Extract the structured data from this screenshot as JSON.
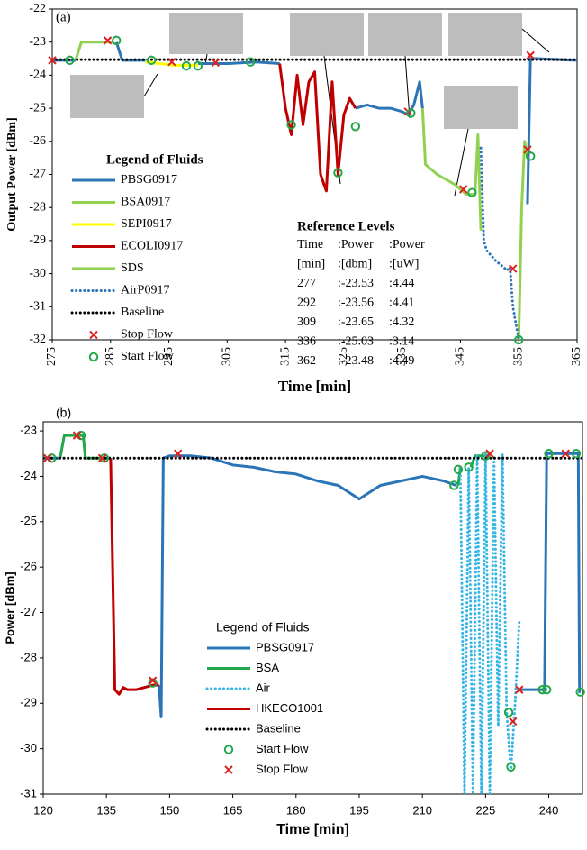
{
  "chart_data": [
    {
      "type": "line",
      "label": "(a)",
      "xlabel": "Time [min]",
      "ylabel": "Output Power [dBm]",
      "xlim": [
        275,
        365
      ],
      "ylim": [
        -22,
        -32
      ],
      "xticks": [
        275,
        285,
        295,
        305,
        315,
        325,
        335,
        345,
        355,
        365
      ],
      "yticks": [
        -22,
        -23,
        -24,
        -25,
        -26,
        -27,
        -28,
        -29,
        -30,
        -31,
        -32
      ],
      "legend_title": "Legend of Fluids",
      "series": [
        {
          "name": "PBSG0917",
          "color": "#2e75b6",
          "style": "solid",
          "x": [
            275,
            279,
            null,
            286,
            287,
            291,
            null,
            300,
            305,
            310,
            314,
            null,
            327,
            329,
            331,
            333,
            335,
            336,
            337,
            338,
            338.5,
            null,
            356.5,
            357,
            358,
            365
          ],
          "values": [
            -23.55,
            -23.55,
            null,
            -23.0,
            -23.55,
            -23.55,
            null,
            -23.65,
            -23.65,
            -23.6,
            -23.65,
            null,
            -25.0,
            -24.9,
            -25.0,
            -25.0,
            -25.1,
            -25.2,
            -24.9,
            -24.2,
            -25.0,
            null,
            -27.9,
            -23.5,
            -23.5,
            -23.55
          ]
        },
        {
          "name": "BSA0917",
          "color": "#92d050",
          "style": "solid",
          "x": [
            279,
            280,
            285.5
          ],
          "values": [
            -23.55,
            -23.0,
            -23.0
          ]
        },
        {
          "name": "SEPI0917",
          "color": "#ffff00",
          "style": "solid",
          "x": [
            291,
            296,
            300
          ],
          "values": [
            -23.6,
            -23.7,
            -23.7
          ]
        },
        {
          "name": "ECOLI0917",
          "color": "#c00000",
          "style": "solid",
          "x": [
            314,
            315,
            316,
            317,
            318,
            319,
            320,
            321,
            322,
            323,
            324,
            325,
            326,
            327
          ],
          "values": [
            -23.65,
            -25.0,
            -25.8,
            -24.0,
            -25.5,
            -24.2,
            -23.9,
            -27.0,
            -27.5,
            -24.2,
            -27.0,
            -25.2,
            -24.7,
            -25.0
          ]
        },
        {
          "name": "SDS",
          "color": "#92d050",
          "style": "solid",
          "x": [
            338.5,
            339,
            341,
            344,
            346,
            347.5,
            348,
            348.5,
            null,
            355,
            355.5,
            356,
            356.5
          ],
          "values": [
            -25.0,
            -26.7,
            -27.0,
            -27.3,
            -27.6,
            -27.6,
            -25.8,
            -28.7,
            null,
            -32.0,
            -28.0,
            -26.0,
            -26.5
          ]
        },
        {
          "name": "AirP0917",
          "color": "#2e75b6",
          "style": "dotted",
          "x": [
            348.5,
            349,
            349.5,
            351,
            353,
            353.5,
            354,
            355
          ],
          "values": [
            -26.2,
            -29.0,
            -29.3,
            -29.6,
            -29.9,
            -29.8,
            -31.0,
            -32.0
          ]
        },
        {
          "name": "Baseline",
          "color": "#000000",
          "style": "dotted",
          "x": [
            275,
            365
          ],
          "values": [
            -23.53,
            -23.53
          ]
        },
        {
          "name": "Stop Flow",
          "color": "#e02020",
          "style": "none",
          "marker": "x",
          "x": [
            275,
            284.5,
            295.5,
            303,
            336,
            345.5,
            354,
            356.5,
            357
          ],
          "values": [
            -23.55,
            -22.95,
            -23.6,
            -23.62,
            -25.1,
            -27.45,
            -29.85,
            -26.25,
            -23.4
          ]
        },
        {
          "name": "Start Flow",
          "color": "#22a84a",
          "style": "none",
          "marker": "o",
          "x": [
            278,
            286,
            292,
            298,
            300,
            309,
            316,
            324,
            327,
            336.5,
            347,
            355,
            357
          ],
          "values": [
            -23.55,
            -22.95,
            -23.55,
            -23.72,
            -23.72,
            -23.6,
            -25.5,
            -26.95,
            -25.55,
            -25.15,
            -27.55,
            -32.0,
            -26.45
          ]
        }
      ],
      "reference_levels": {
        "title": "Reference Levels",
        "rows": [
          [
            "Time",
            ":Power",
            ":Power"
          ],
          [
            "[min]",
            ":[dbm]",
            ":[uW]"
          ],
          [
            "277",
            ":-23.53",
            ":4.44"
          ],
          [
            "292",
            ":-23.56",
            ":4.41"
          ],
          [
            "309",
            ":-23.65",
            ":4.32"
          ],
          [
            "336",
            ":-25.03",
            ":3.14"
          ],
          [
            "362",
            ":-23.48",
            ":4.49"
          ]
        ]
      }
    },
    {
      "type": "line",
      "label": "(b)",
      "xlabel": "Time [min]",
      "ylabel": "Power [dBm]",
      "xlim": [
        120,
        248
      ],
      "ylim": [
        -22.8,
        -31
      ],
      "xticks": [
        120,
        135,
        150,
        165,
        180,
        195,
        210,
        225,
        240
      ],
      "yticks": [
        -23,
        -24,
        -25,
        -26,
        -27,
        -28,
        -29,
        -30,
        -31
      ],
      "legend_title": "Legend of Fluids",
      "series": [
        {
          "name": "PBSG0917",
          "color": "#2a74b8",
          "style": "solid",
          "x": [
            120,
            124,
            null,
            134,
            136,
            null,
            147.5,
            148,
            148.5,
            150,
            155,
            160,
            165,
            170,
            175,
            180,
            185,
            190,
            195,
            200,
            205,
            210,
            215,
            218,
            null,
            233,
            236,
            239,
            239.5,
            240,
            245,
            247,
            247.3,
            247.5
          ],
          "values": [
            -23.6,
            -23.6,
            null,
            -23.6,
            -23.6,
            null,
            -28.6,
            -29.3,
            -23.6,
            -23.55,
            -23.55,
            -23.6,
            -23.75,
            -23.8,
            -23.9,
            -23.95,
            -24.1,
            -24.2,
            -24.5,
            -24.2,
            -24.1,
            -24.0,
            -24.1,
            -24.2,
            null,
            -28.7,
            -28.7,
            -28.7,
            -23.5,
            -23.5,
            -23.5,
            -23.5,
            -28.75,
            -28.75
          ]
        },
        {
          "name": "BSA",
          "color": "#22a84a",
          "style": "solid",
          "x": [
            124,
            125,
            126,
            128,
            129.5,
            130,
            134,
            null,
            218.5,
            219,
            null,
            221.5,
            222.5,
            226
          ],
          "values": [
            -23.6,
            -23.1,
            -23.1,
            -23.1,
            -23.1,
            -23.6,
            -23.6,
            null,
            -24.2,
            -23.8,
            null,
            -23.8,
            -23.55,
            -23.55
          ]
        },
        {
          "name": "Air",
          "color": "#33b5e5",
          "style": "dotted",
          "x": [
            219,
            220,
            221,
            222,
            223,
            224,
            225,
            226,
            227,
            228,
            229,
            230,
            231,
            232,
            233
          ],
          "values": [
            -23.8,
            -31,
            -23.8,
            -31,
            -23.55,
            -31,
            -23.5,
            -31,
            -23.55,
            -29.5,
            -23.5,
            -29.2,
            -30.5,
            -29.0,
            -27.2
          ]
        },
        {
          "name": "HKECO1001",
          "color": "#c00000",
          "style": "solid",
          "x": [
            136,
            137,
            138,
            139,
            140,
            142,
            144,
            146,
            147.5
          ],
          "values": [
            -23.6,
            -28.7,
            -28.8,
            -28.65,
            -28.7,
            -28.7,
            -28.65,
            -28.6,
            -28.6
          ]
        },
        {
          "name": "Baseline",
          "color": "#000000",
          "style": "dotted",
          "x": [
            120,
            248
          ],
          "values": [
            -23.6,
            -23.6
          ]
        },
        {
          "name": "Start Flow",
          "color": "#22a84a",
          "style": "none",
          "marker": "o",
          "x": [
            122,
            129,
            134.5,
            146,
            217.5,
            218.5,
            221,
            225,
            230.5,
            231,
            238.5,
            239.5,
            240,
            246.5,
            247.5
          ],
          "values": [
            -23.6,
            -23.1,
            -23.6,
            -28.55,
            -24.2,
            -23.85,
            -23.8,
            -23.55,
            -29.2,
            -30.4,
            -28.7,
            -28.7,
            -23.5,
            -23.5,
            -28.75
          ]
        },
        {
          "name": "Stop Flow",
          "color": "#e02020",
          "style": "none",
          "marker": "x",
          "x": [
            121,
            128,
            134,
            146,
            152,
            226,
            231.5,
            233,
            244
          ],
          "values": [
            -23.6,
            -23.1,
            -23.6,
            -28.5,
            -23.5,
            -23.5,
            -29.4,
            -28.7,
            -23.5
          ]
        }
      ]
    }
  ]
}
